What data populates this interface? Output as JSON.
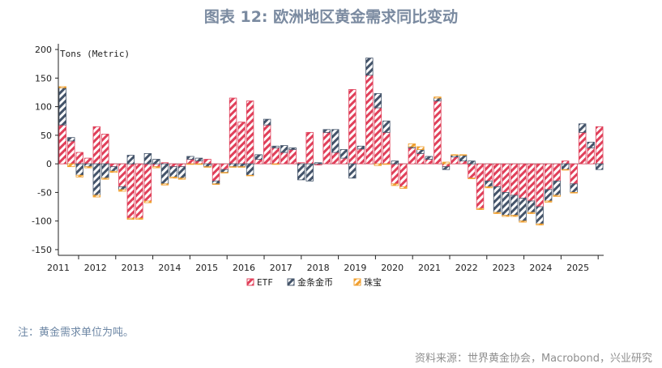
{
  "title": "图表 12: 欧洲地区黄金需求同比变动",
  "note": "注：黄金需求单位为吨。",
  "source": "资料来源：世界黄金协会，Macrobond，兴业研究",
  "colors": {
    "etf": "#e0405a",
    "bar": "#44546a",
    "jewelry": "#f0a030"
  },
  "chart_data": {
    "type": "bar",
    "stacked": true,
    "unit_label": "Tons (Metric)",
    "ylim": [
      -160,
      210
    ],
    "yticks": [
      200,
      150,
      100,
      50,
      0,
      -50,
      -100,
      -150
    ],
    "year_labels": [
      "2011",
      "2012",
      "2013",
      "2014",
      "2015",
      "2016",
      "2017",
      "2018",
      "2019",
      "2020",
      "2021",
      "2022",
      "2023",
      "2024",
      "2025"
    ],
    "legend": [
      "ETF",
      "金条金币",
      "珠宝"
    ],
    "legend_position": "bottom",
    "grid": false,
    "series": [
      {
        "name": "ETF",
        "values": [
          68,
          40,
          20,
          10,
          65,
          52,
          -5,
          -40,
          -95,
          -95,
          -65,
          -5,
          2,
          -5,
          -5,
          8,
          5,
          8,
          -30,
          -10,
          115,
          73,
          110,
          8,
          68,
          28,
          20,
          25,
          2,
          55,
          -2,
          55,
          20,
          10,
          130,
          26,
          155,
          98,
          55,
          -35,
          -40,
          28,
          18,
          8,
          110,
          -5,
          12,
          5,
          -25,
          -78,
          -30,
          -40,
          -50,
          -55,
          -60,
          -65,
          -75,
          -45,
          -30,
          5,
          -35,
          55,
          28,
          65
        ]
      },
      {
        "name": "金条金币",
        "values": [
          65,
          6,
          -20,
          -5,
          -55,
          -25,
          -8,
          -5,
          15,
          0,
          18,
          8,
          -35,
          -18,
          -20,
          5,
          5,
          -5,
          -5,
          -5,
          -5,
          -5,
          -20,
          8,
          10,
          3,
          12,
          3,
          -28,
          -30,
          2,
          5,
          40,
          15,
          -25,
          5,
          30,
          25,
          20,
          5,
          0,
          2,
          7,
          5,
          5,
          -5,
          3,
          10,
          5,
          0,
          -10,
          -45,
          -40,
          -35,
          -40,
          -20,
          -30,
          -20,
          -25,
          -10,
          -15,
          15,
          10,
          -10
        ]
      },
      {
        "name": "珠宝",
        "values": [
          2,
          -5,
          -3,
          -2,
          -3,
          -2,
          -2,
          -3,
          -2,
          -2,
          -3,
          -2,
          -2,
          -2,
          -2,
          -1,
          -1,
          -1,
          -1,
          -1,
          -1,
          -1,
          -1,
          0,
          0,
          -1,
          0,
          0,
          0,
          0,
          0,
          0,
          0,
          0,
          0,
          0,
          0,
          -3,
          -1,
          -3,
          -3,
          5,
          5,
          0,
          2,
          3,
          1,
          1,
          -1,
          -2,
          -2,
          -2,
          -2,
          -2,
          -2,
          -2,
          -2,
          -2,
          -2,
          -1,
          -1,
          0,
          0,
          0
        ]
      }
    ]
  }
}
